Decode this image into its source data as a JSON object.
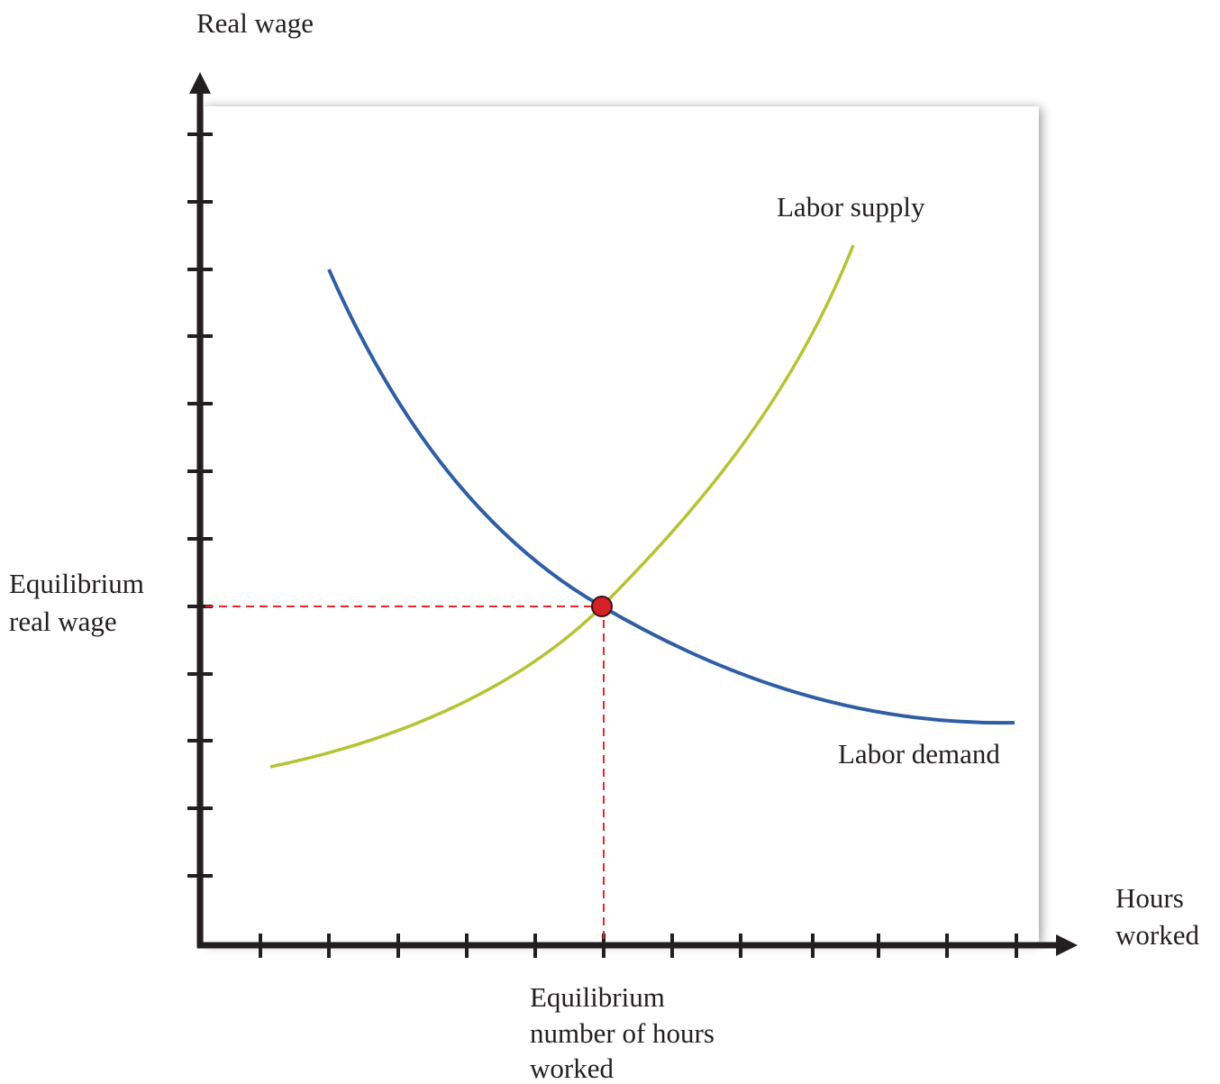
{
  "axes": {
    "y_label": "Real wage",
    "x_label": [
      "Hours",
      "worked"
    ]
  },
  "curves": {
    "supply": "Labor supply",
    "demand": "Labor demand"
  },
  "equilibrium": {
    "wage_label": [
      "Equilibrium",
      "real wage"
    ],
    "hours_label": [
      "Equilibrium",
      "number of hours",
      "worked"
    ]
  }
}
